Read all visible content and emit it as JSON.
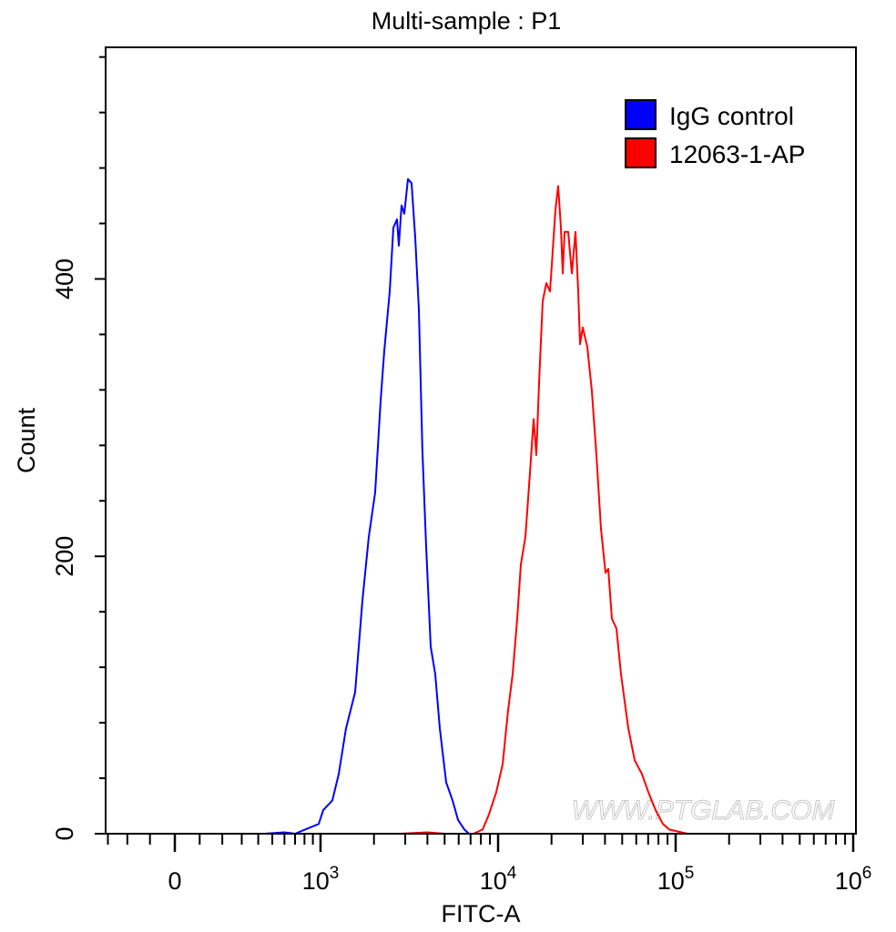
{
  "chart_data": {
    "type": "line",
    "title": "Multi-sample : P1",
    "xlabel": "FITC-A",
    "ylabel": "Count",
    "x_scale": "biexponential",
    "xlim": [
      -310,
      1000000
    ],
    "ylim": [
      0,
      567
    ],
    "x_ticks": [
      {
        "value": 0,
        "base": "0",
        "exp": ""
      },
      {
        "value": 1000,
        "base": "10",
        "exp": "3"
      },
      {
        "value": 10000,
        "base": "10",
        "exp": "4"
      },
      {
        "value": 100000,
        "base": "10",
        "exp": "5"
      },
      {
        "value": 1000000,
        "base": "10",
        "exp": "6"
      }
    ],
    "y_ticks": [
      0,
      200,
      400
    ],
    "y_minor_step": 40,
    "grid": false,
    "legend_position": "top-right",
    "watermark": "WWW.PTGLAB.COM",
    "series": [
      {
        "name": "IgG control",
        "color": "#0000ff",
        "points": [
          [
            440,
            0
          ],
          [
            600,
            1
          ],
          [
            700,
            0
          ],
          [
            975,
            7
          ],
          [
            1036,
            17
          ],
          [
            1166,
            24
          ],
          [
            1266,
            43
          ],
          [
            1392,
            76
          ],
          [
            1567,
            102
          ],
          [
            1722,
            168
          ],
          [
            1870,
            214
          ],
          [
            2030,
            246
          ],
          [
            2180,
            312
          ],
          [
            2285,
            348
          ],
          [
            2452,
            391
          ],
          [
            2572,
            437
          ],
          [
            2697,
            443
          ],
          [
            2760,
            424
          ],
          [
            2860,
            453
          ],
          [
            2963,
            447
          ],
          [
            3106,
            472
          ],
          [
            3258,
            469
          ],
          [
            3415,
            430
          ],
          [
            3580,
            378
          ],
          [
            3750,
            276
          ],
          [
            3936,
            207
          ],
          [
            4176,
            135
          ],
          [
            4426,
            115
          ],
          [
            4696,
            76
          ],
          [
            5100,
            37
          ],
          [
            5543,
            24
          ],
          [
            5945,
            10
          ],
          [
            6460,
            3
          ],
          [
            6855,
            0
          ]
        ]
      },
      {
        "name": "12063-1-AP",
        "color": "#ff0000",
        "points": [
          [
            2827,
            0
          ],
          [
            4000,
            1
          ],
          [
            5000,
            0
          ],
          [
            7280,
            0
          ],
          [
            8180,
            3
          ],
          [
            8890,
            14
          ],
          [
            9770,
            30
          ],
          [
            10610,
            50
          ],
          [
            11390,
            89
          ],
          [
            12080,
            115
          ],
          [
            12810,
            155
          ],
          [
            13430,
            194
          ],
          [
            14250,
            214
          ],
          [
            15120,
            260
          ],
          [
            15850,
            299
          ],
          [
            16430,
            273
          ],
          [
            17020,
            325
          ],
          [
            17840,
            384
          ],
          [
            18700,
            397
          ],
          [
            19610,
            391
          ],
          [
            20070,
            410
          ],
          [
            21040,
            450
          ],
          [
            21810,
            467
          ],
          [
            22590,
            437
          ],
          [
            23130,
            404
          ],
          [
            23680,
            434
          ],
          [
            24830,
            434
          ],
          [
            26030,
            404
          ],
          [
            27290,
            434
          ],
          [
            28280,
            391
          ],
          [
            28950,
            353
          ],
          [
            29990,
            365
          ],
          [
            31810,
            351
          ],
          [
            33750,
            319
          ],
          [
            35800,
            273
          ],
          [
            37980,
            220
          ],
          [
            40290,
            188
          ],
          [
            41740,
            191
          ],
          [
            43750,
            155
          ],
          [
            46420,
            148
          ],
          [
            49240,
            115
          ],
          [
            54120,
            76
          ],
          [
            58780,
            53
          ],
          [
            64600,
            43
          ],
          [
            70200,
            30
          ],
          [
            77160,
            17
          ],
          [
            84780,
            7
          ],
          [
            92060,
            3
          ],
          [
            116600,
            0
          ]
        ]
      }
    ]
  }
}
